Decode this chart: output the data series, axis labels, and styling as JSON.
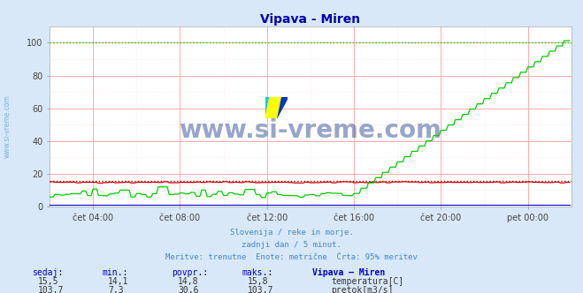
{
  "title": "Vipava - Miren",
  "background_color": "#d8e8f8",
  "plot_bg_color": "#ffffff",
  "grid_color_major": "#ffaaaa",
  "grid_color_minor": "#ffdddd",
  "x_min": 0,
  "x_max": 288,
  "y_min": 0,
  "y_max": 110,
  "y_ticks": [
    0,
    20,
    40,
    60,
    80,
    100
  ],
  "x_tick_positions": [
    24,
    72,
    120,
    168,
    216,
    264
  ],
  "x_tick_labels": [
    "čet 04:00",
    "čet 08:00",
    "čet 12:00",
    "čet 16:00",
    "čet 20:00",
    "pet 00:00"
  ],
  "temp_color": "#cc0000",
  "flow_color": "#00cc00",
  "height_color": "#0000cc",
  "watermark_text": "www.si-vreme.com",
  "watermark_color": "#1a3a8a",
  "watermark_alpha": 0.45,
  "subtitle_lines": [
    "Slovenija / reke in morje.",
    "zadnji dan / 5 minut.",
    "Meritve: trenutne  Enote: metrične  Črta: 95% meritev"
  ],
  "subtitle_color": "#4488cc",
  "table_header": [
    "sedaj:",
    "min.:",
    "povpr.:",
    "maks.:",
    "Vipava – Miren"
  ],
  "table_color": "#0000cc",
  "temp_row": [
    "15,5",
    "14,1",
    "14,8",
    "15,8"
  ],
  "flow_row": [
    "103,7",
    "7,3",
    "30,6",
    "103,7"
  ],
  "temp_label": "temperatura[C]",
  "flow_label": "pretok[m3/s]",
  "ylabel_color": "#4488cc",
  "temp_95pct": 15.5,
  "flow_95pct": 100.0,
  "flow_start_rise": 168,
  "flow_min": 7.3,
  "flow_max": 103.7,
  "temp_base": 14.8,
  "temp_min": 14.1,
  "temp_max": 15.8
}
